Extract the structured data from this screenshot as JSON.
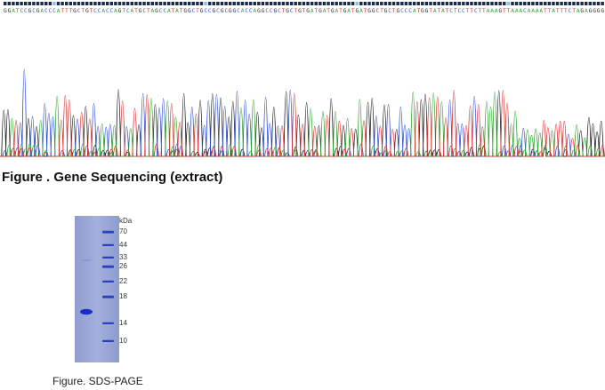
{
  "sequence": {
    "bases": "GGATCCGCGACCCATTTGCTGTCCACCAGTCATGCTAGCCATATGGCTGCCGCGCGGCACCAGGCCGCTGCTGTGATGATGATGATGATGGCTGCTGCCCATGGTATATCTCCTTCTTAAAGTTAAACAAAATTATTTCTAGAGGGG",
    "caption": "Figure . Gene Sequencing (extract)",
    "colors": {
      "A": "#2eaa2e",
      "C": "#3050d8",
      "G": "#222222",
      "T": "#e03030"
    }
  },
  "gel": {
    "kda_label": "kDa",
    "markers": [
      "70",
      "44",
      "33",
      "26",
      "22",
      "18",
      "14",
      "10"
    ],
    "caption": "Figure. SDS-PAGE",
    "gel_color": "#9aa7d6",
    "band_color": "#1a2fc8"
  }
}
